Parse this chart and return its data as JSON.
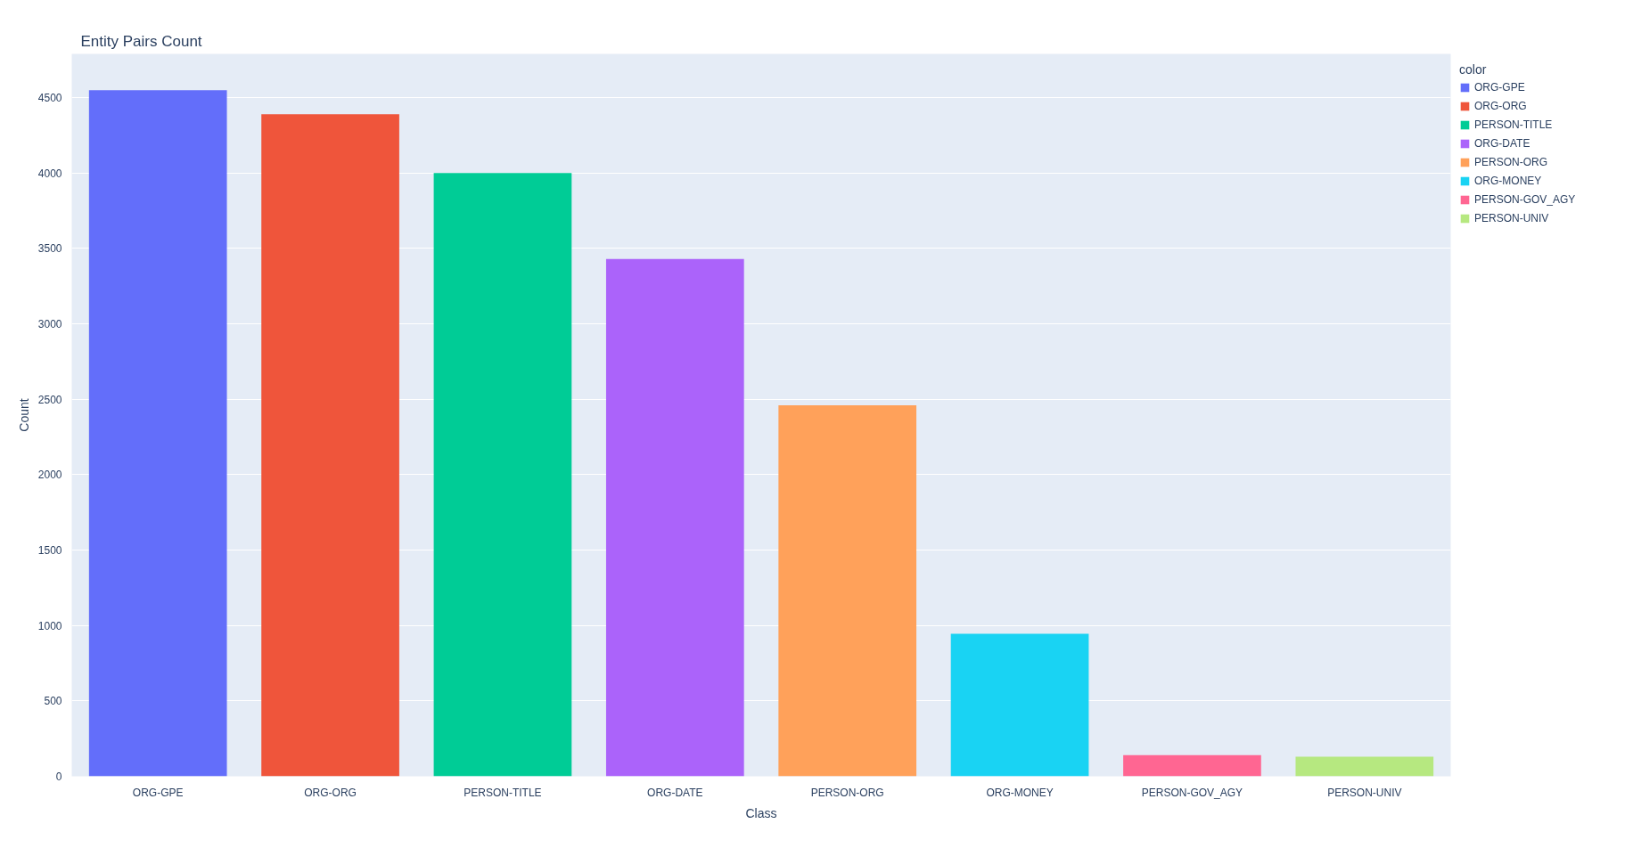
{
  "chart_data": {
    "type": "bar",
    "title": "Entity Pairs Count",
    "xlabel": "Class",
    "ylabel": "Count",
    "legend_title": "color",
    "categories": [
      "ORG-GPE",
      "ORG-ORG",
      "PERSON-TITLE",
      "ORG-DATE",
      "PERSON-ORG",
      "ORG-MONEY",
      "PERSON-GOV_AGY",
      "PERSON-UNIV"
    ],
    "series": [
      {
        "name": "ORG-GPE",
        "color": "#636efa",
        "values": [
          4550,
          null,
          null,
          null,
          null,
          null,
          null,
          null
        ]
      },
      {
        "name": "ORG-ORG",
        "color": "#ef553b",
        "values": [
          null,
          4390,
          null,
          null,
          null,
          null,
          null,
          null
        ]
      },
      {
        "name": "PERSON-TITLE",
        "color": "#00cc96",
        "values": [
          null,
          null,
          4000,
          null,
          null,
          null,
          null,
          null
        ]
      },
      {
        "name": "ORG-DATE",
        "color": "#ab63fa",
        "values": [
          null,
          null,
          null,
          3430,
          null,
          null,
          null,
          null
        ]
      },
      {
        "name": "PERSON-ORG",
        "color": "#ffa15a",
        "values": [
          null,
          null,
          null,
          null,
          2460,
          null,
          null,
          null
        ]
      },
      {
        "name": "ORG-MONEY",
        "color": "#19d3f3",
        "values": [
          null,
          null,
          null,
          null,
          null,
          945,
          null,
          null
        ]
      },
      {
        "name": "PERSON-GOV_AGY",
        "color": "#ff6692",
        "values": [
          null,
          null,
          null,
          null,
          null,
          null,
          140,
          null
        ]
      },
      {
        "name": "PERSON-UNIV",
        "color": "#b6e880",
        "values": [
          null,
          null,
          null,
          null,
          null,
          null,
          null,
          130
        ]
      }
    ],
    "ylim": [
      0,
      4790
    ],
    "yticks": [
      0,
      500,
      1000,
      1500,
      2000,
      2500,
      3000,
      3500,
      4000,
      4500
    ],
    "grid": "y",
    "legend": "top right"
  }
}
